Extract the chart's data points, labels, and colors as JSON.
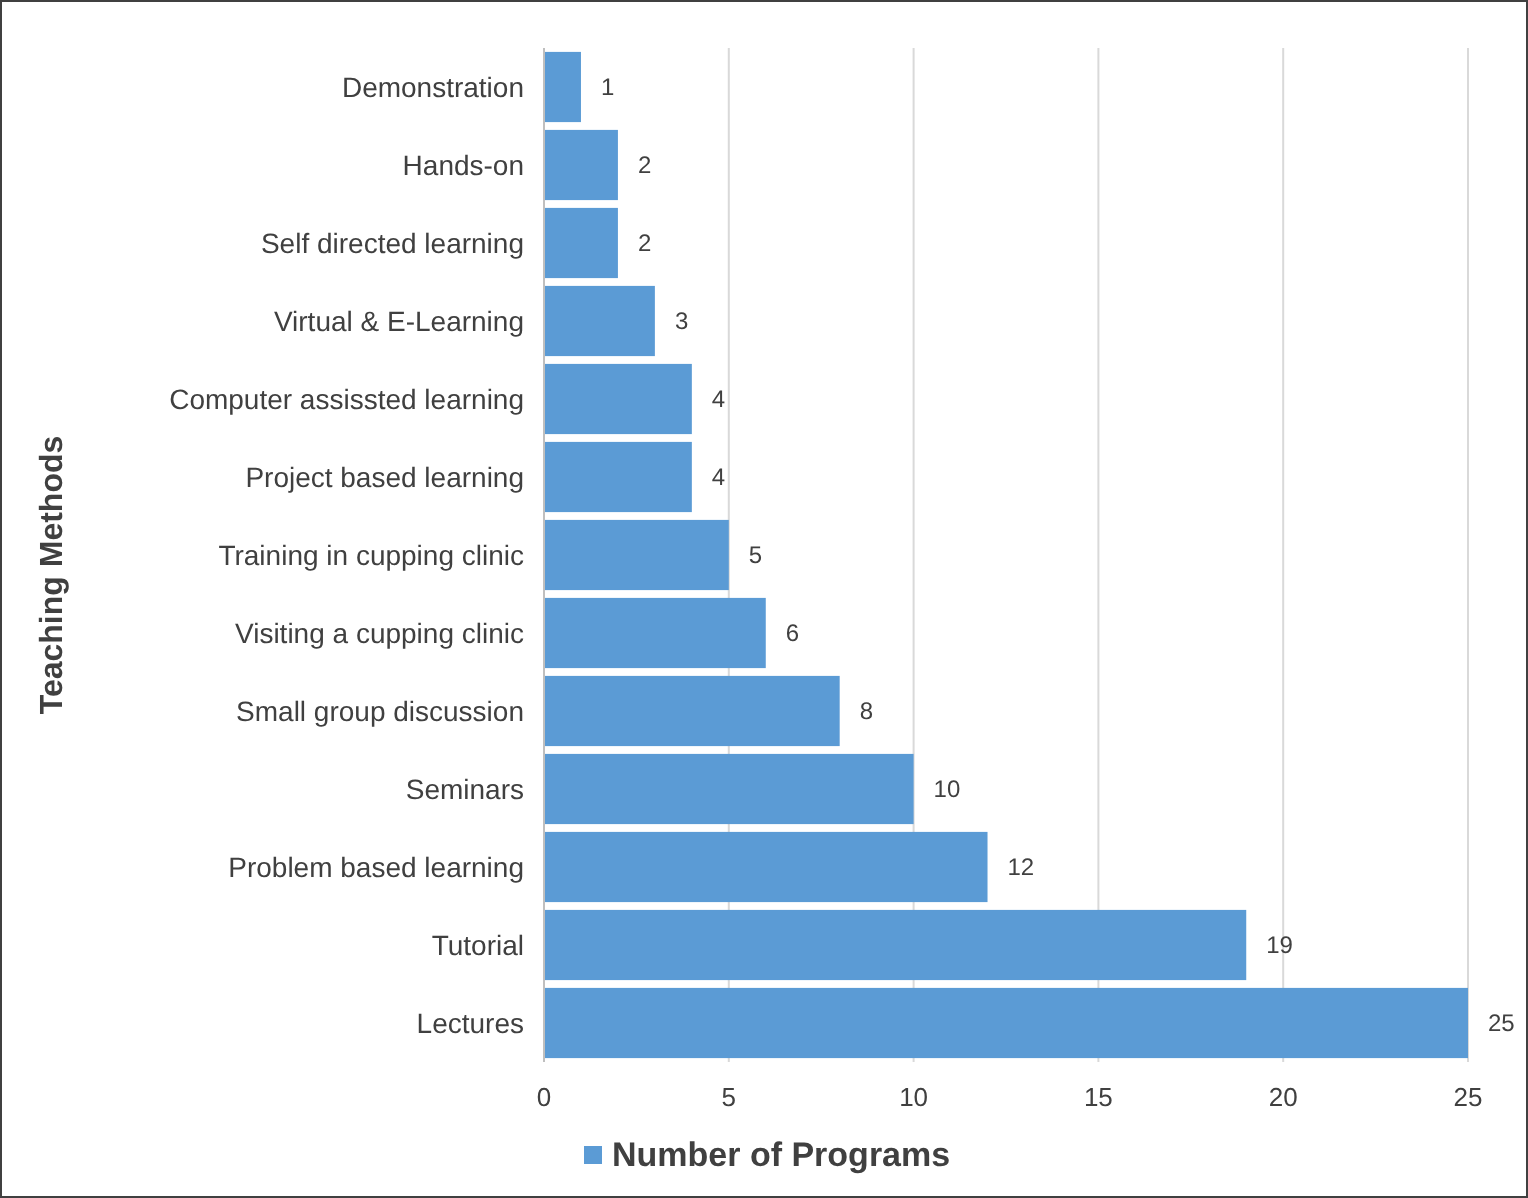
{
  "chart_data": {
    "type": "bar",
    "orientation": "horizontal",
    "ylabel": "Teaching Methods",
    "categories": [
      "Demonstration",
      "Hands-on",
      "Self directed learning",
      "Virtual & E-Learning",
      "Computer assissted learning",
      "Project based learning",
      "Training in cupping clinic",
      "Visiting a cupping clinic",
      "Small group discussion",
      "Seminars",
      "Problem based learning",
      "Tutorial",
      "Lectures"
    ],
    "series": [
      {
        "name": "Number of Programs",
        "color": "#5b9bd5",
        "values": [
          1,
          2,
          2,
          3,
          4,
          4,
          5,
          6,
          8,
          10,
          12,
          19,
          25
        ]
      }
    ],
    "xlim": [
      0,
      25
    ],
    "xticks": [
      0,
      5,
      10,
      15,
      20,
      25
    ],
    "grid": "x",
    "legend": "bottom",
    "data_labels": true
  }
}
